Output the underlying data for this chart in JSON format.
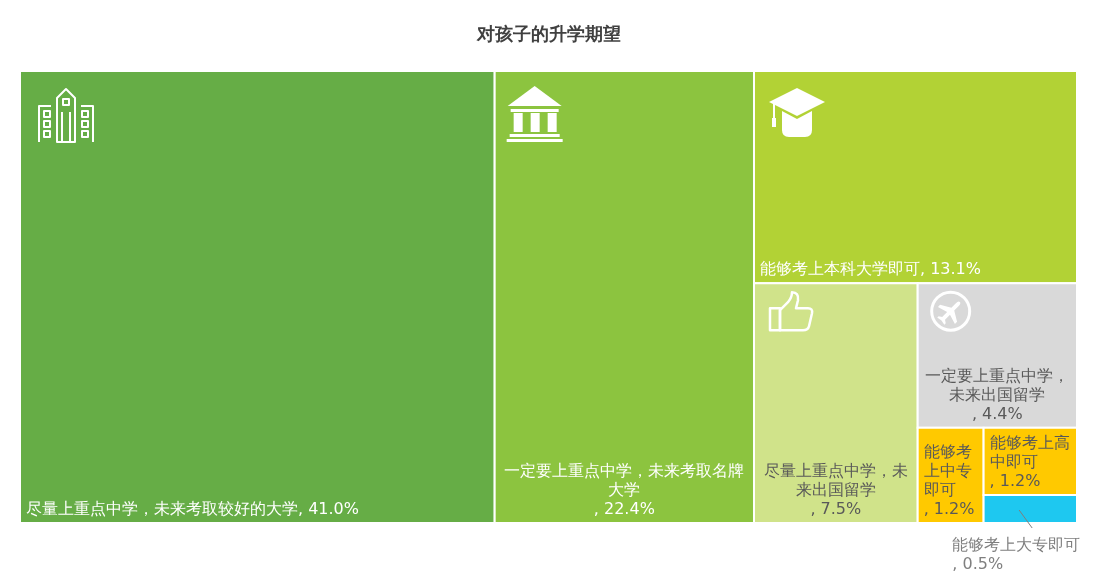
{
  "chart_data": {
    "type": "other",
    "title": "对孩子的升学期望",
    "categories": [
      "尽量上重点中学，未来考取较好的大学",
      "一定要上重点中学，未来考取名牌大学",
      "能够考上本科大学即可",
      "尽量上重点中学，未来出国留学",
      "一定要上重点中学，未来出国留学",
      "能够考上中专即可",
      "能够考上高中即可",
      "能够考上大专即可"
    ],
    "values": [
      41.0,
      22.4,
      13.1,
      7.5,
      4.4,
      1.2,
      1.2,
      0.5
    ],
    "value_labels": [
      ", 41.0%",
      ", 22.4%",
      ", 13.1%",
      ", 7.5%",
      ", 4.4%",
      ", 1.2%",
      ", 1.2%",
      ", 0.5%"
    ],
    "colors": [
      "#66ad46",
      "#8cc43f",
      "#b2d235",
      "#d0e38a",
      "#d9d9d9",
      "#ffc900",
      "#ffc900",
      "#1ec8f0"
    ]
  }
}
